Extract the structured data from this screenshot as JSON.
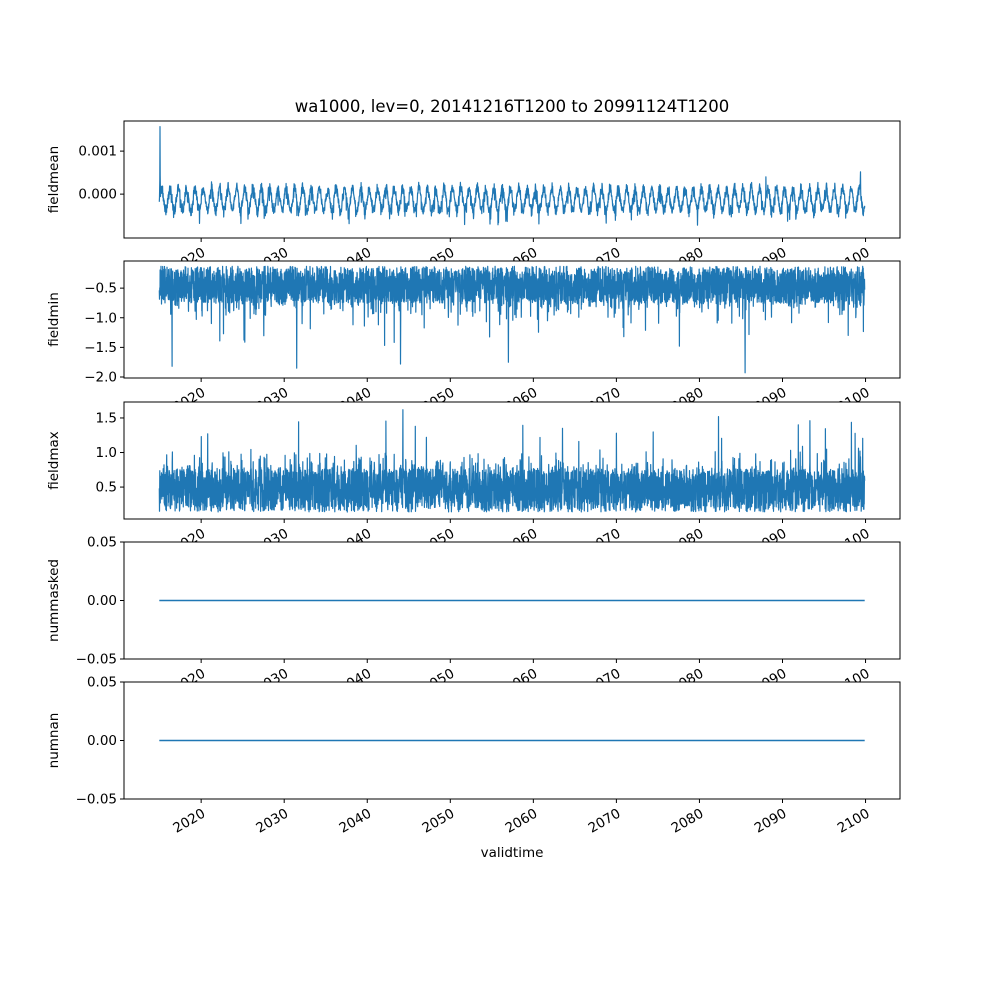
{
  "figure": {
    "title": "wa1000, lev=0, 20141216T1200 to 20991124T1200",
    "xlabel": "validtime",
    "background": "#ffffff",
    "plot_background": "#ffffff",
    "line_color": "#1f77b4",
    "spine_color": "#000000",
    "tick_color": "#000000",
    "xlim": [
      2010.71,
      2104.15
    ],
    "x_data_start": 2014.96,
    "x_data_end": 2099.9,
    "x_ticks": [
      {
        "value": 2020,
        "label": "2020"
      },
      {
        "value": 2030,
        "label": "2030"
      },
      {
        "value": 2040,
        "label": "2040"
      },
      {
        "value": 2050,
        "label": "2050"
      },
      {
        "value": 2060,
        "label": "2060"
      },
      {
        "value": 2070,
        "label": "2070"
      },
      {
        "value": 2080,
        "label": "2080"
      },
      {
        "value": 2090,
        "label": "2090"
      },
      {
        "value": 2100,
        "label": "2100"
      }
    ]
  },
  "chart_data": [
    {
      "type": "line",
      "ylabel": "fieldmean",
      "ylim": [
        -0.00102,
        0.0017
      ],
      "yticks": [
        {
          "value": 0.001,
          "label": "0.001"
        },
        {
          "value": 0.0,
          "label": "0.000"
        }
      ],
      "series": [
        {
          "name": "fieldmean",
          "summary": "high-frequency annual oscillation around -0.0001, envelope +0.0003 to -0.0006, dips to -0.00075",
          "band_top": 0.0003,
          "band_bottom": -0.0006,
          "mean": -0.00012,
          "spikes": [
            {
              "x": 2015.04,
              "y": 0.00157
            },
            {
              "x": 2088.0,
              "y": 0.0004
            },
            {
              "x": 2099.4,
              "y": 0.00052
            }
          ]
        }
      ],
      "gen": {
        "kind": "mean",
        "seed": 11,
        "n": 3000,
        "base": -0.00012,
        "amp": 0.00026,
        "noise": 0.0001,
        "dip": 0.00028,
        "dip_p": 0.12
      }
    },
    {
      "type": "line",
      "ylabel": "fieldmin",
      "ylim": [
        -2.017,
        -0.042
      ],
      "yticks": [
        {
          "value": -0.5,
          "label": "−0.5"
        },
        {
          "value": -1.0,
          "label": "−1.0"
        },
        {
          "value": -1.5,
          "label": "−1.5"
        },
        {
          "value": -2.0,
          "label": "−2.0"
        }
      ],
      "series": [
        {
          "name": "fieldmin",
          "summary": "dense band -0.13 to -0.8 with frequent downward spikes to -1.2..-1.6 and rare spikes near -1.9",
          "band_top": -0.13,
          "band_bottom": -0.8,
          "spikes": [
            {
              "x": 2016.5,
              "y": -1.82
            },
            {
              "x": 2031.5,
              "y": -1.85
            },
            {
              "x": 2044.0,
              "y": -1.78
            },
            {
              "x": 2057.0,
              "y": -1.75
            },
            {
              "x": 2085.5,
              "y": -1.93
            }
          ]
        }
      ],
      "gen": {
        "kind": "band",
        "seed": 22,
        "n": 4200,
        "sign": -1,
        "b0": 0.13,
        "b1": 0.62,
        "p1": 0.3,
        "a1": 0.45,
        "p2": 0.015,
        "a2": 0.25,
        "a3": 0.55,
        "cap": 1.9
      }
    },
    {
      "type": "line",
      "ylabel": "fieldmax",
      "ylim": [
        0.038,
        1.731
      ],
      "yticks": [
        {
          "value": 1.5,
          "label": "1.5"
        },
        {
          "value": 1.0,
          "label": "1.0"
        },
        {
          "value": 0.5,
          "label": "0.5"
        }
      ],
      "series": [
        {
          "name": "fieldmax",
          "summary": "dense band 0.14 to 0.78 with frequent upward spikes to 1.0..1.3 and rare spikes near 1.6",
          "band_top": 0.78,
          "band_bottom": 0.14,
          "spikes": [
            {
              "x": 2044.3,
              "y": 1.62
            },
            {
              "x": 2063.5,
              "y": 1.35
            },
            {
              "x": 2082.3,
              "y": 1.52
            },
            {
              "x": 2091.9,
              "y": 1.4
            },
            {
              "x": 2093.3,
              "y": 1.46
            }
          ]
        }
      ],
      "gen": {
        "kind": "band",
        "seed": 33,
        "n": 4200,
        "sign": 1,
        "b0": 0.14,
        "b1": 0.62,
        "p1": 0.3,
        "a1": 0.42,
        "p2": 0.013,
        "a2": 0.22,
        "a3": 0.5,
        "cap": 1.55
      }
    },
    {
      "type": "line",
      "ylabel": "nummasked",
      "ylim": [
        -0.05,
        0.05
      ],
      "yticks": [
        {
          "value": 0.05,
          "label": "0.05"
        },
        {
          "value": 0.0,
          "label": "0.00"
        },
        {
          "value": -0.05,
          "label": "−0.05"
        }
      ],
      "series": [
        {
          "name": "nummasked",
          "summary": "constant zero line",
          "points": [
            [
              2014.96,
              0.0
            ],
            [
              2099.9,
              0.0
            ]
          ]
        }
      ],
      "gen": {
        "kind": "const",
        "value": 0.0
      }
    },
    {
      "type": "line",
      "ylabel": "numnan",
      "ylim": [
        -0.05,
        0.05
      ],
      "yticks": [
        {
          "value": 0.05,
          "label": "0.05"
        },
        {
          "value": 0.0,
          "label": "0.00"
        },
        {
          "value": -0.05,
          "label": "−0.05"
        }
      ],
      "series": [
        {
          "name": "numnan",
          "summary": "constant zero line",
          "points": [
            [
              2014.96,
              0.0
            ],
            [
              2099.9,
              0.0
            ]
          ]
        }
      ],
      "gen": {
        "kind": "const",
        "value": 0.0
      }
    }
  ]
}
